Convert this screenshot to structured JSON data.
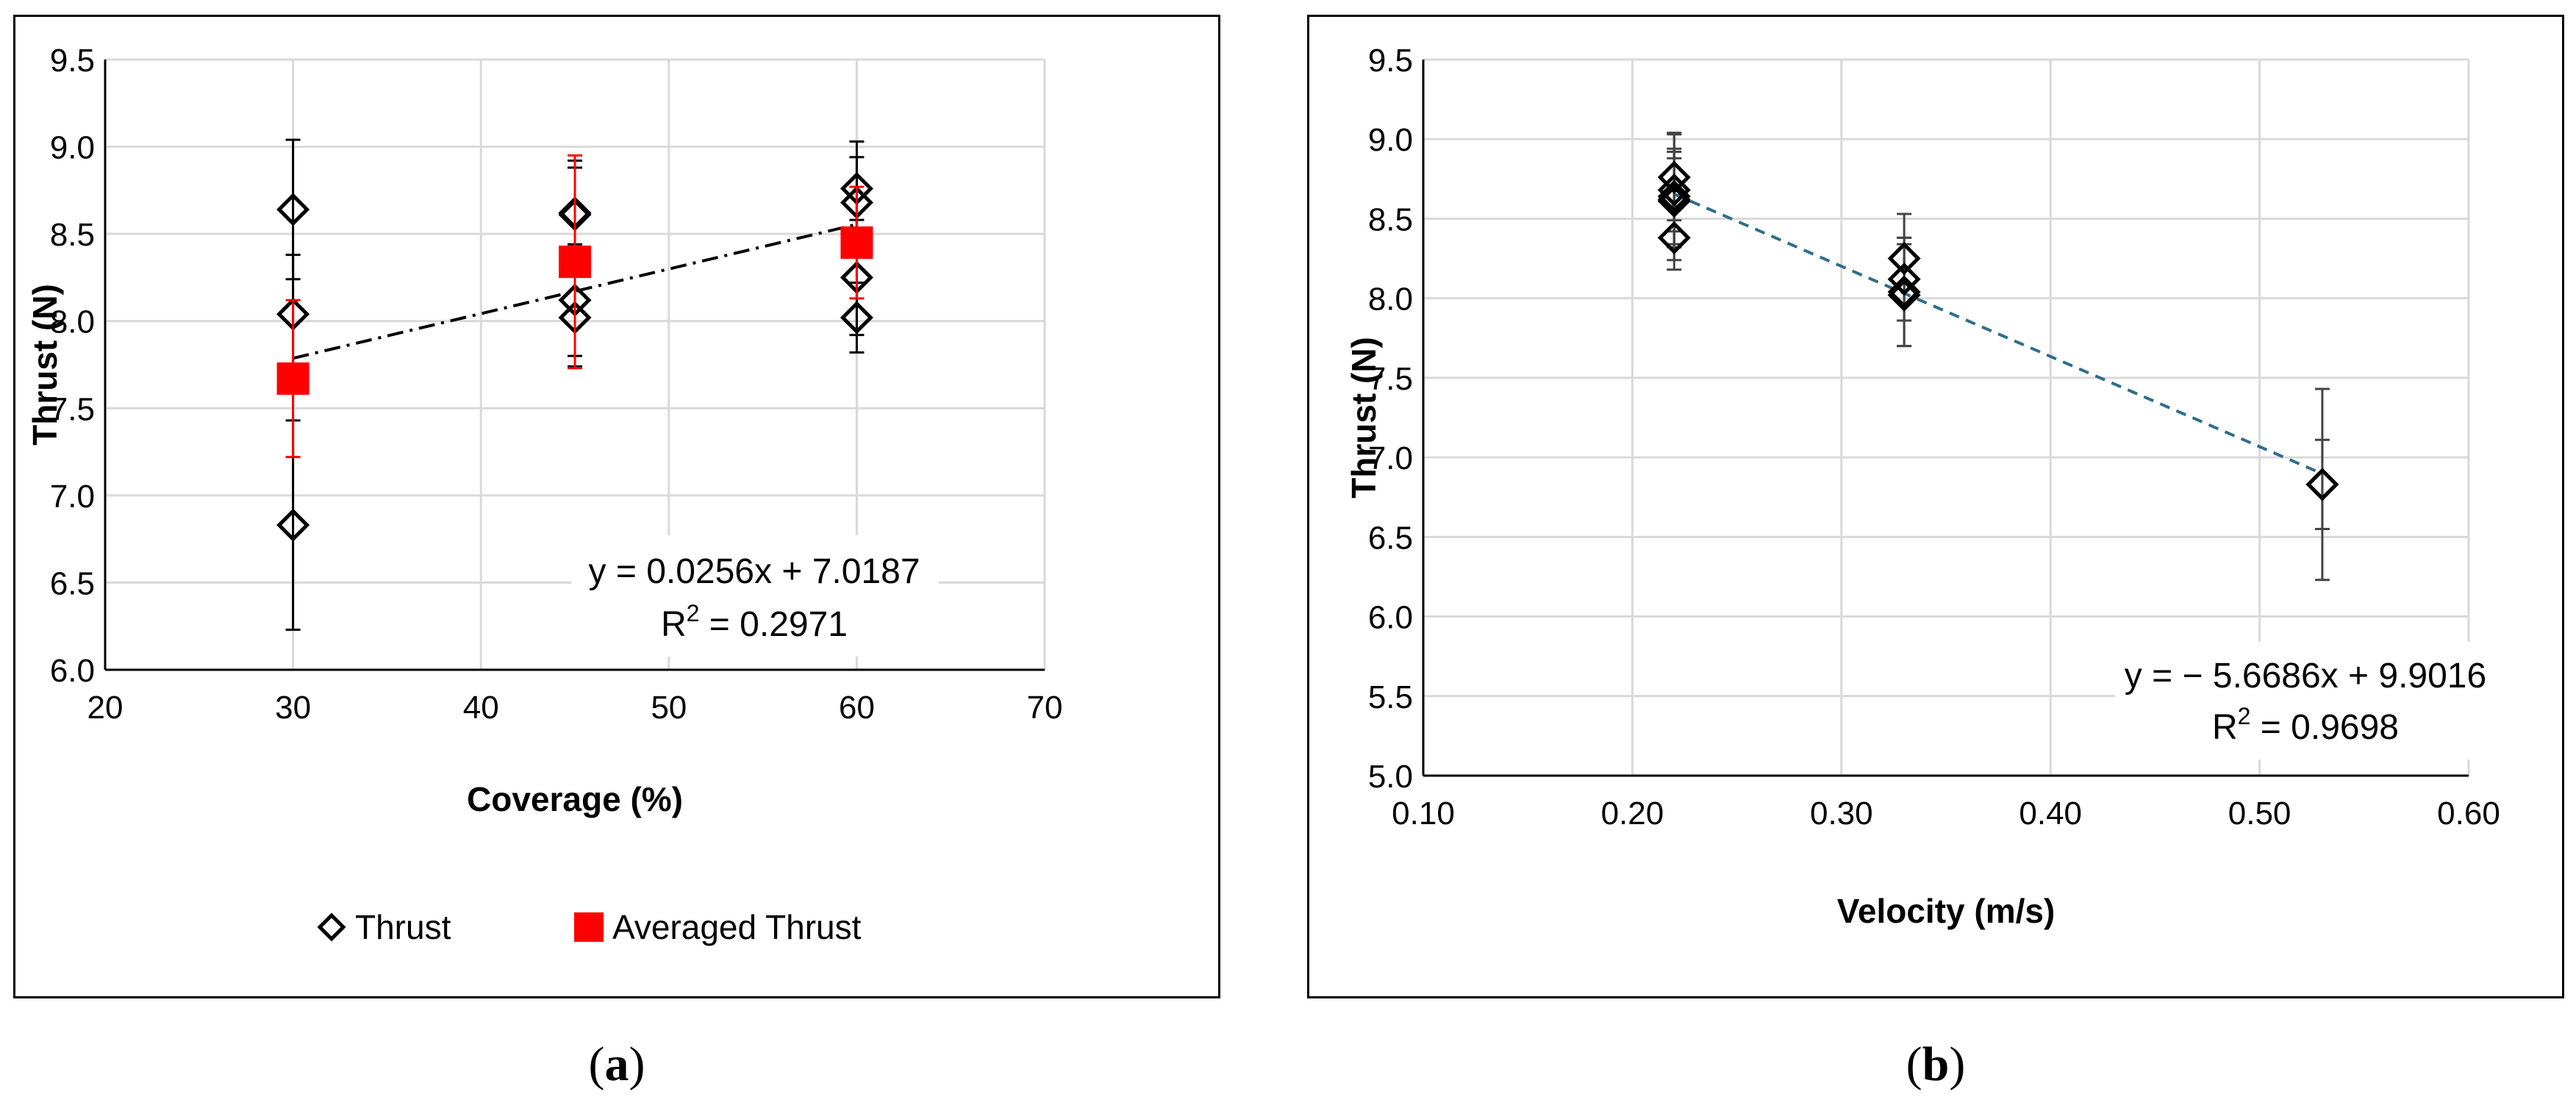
{
  "chart_data": [
    {
      "type": "scatter",
      "panel": "a",
      "xlabel": "Coverage (%)",
      "ylabel": "Thrust (N)",
      "xlim": [
        20,
        70
      ],
      "ylim": [
        6.0,
        9.5
      ],
      "xticks": [
        20,
        30,
        40,
        50,
        60,
        70
      ],
      "yticks": [
        6.0,
        6.5,
        7.0,
        7.5,
        8.0,
        8.5,
        9.0,
        9.5
      ],
      "ytick_decimals": 1,
      "xtick_decimals": 0,
      "grid": true,
      "legend_position": "bottom",
      "series": [
        {
          "name": "Thrust",
          "marker": "diamond-open",
          "color": "#000000",
          "points": [
            {
              "x": 30,
              "y": 8.64,
              "err": 0.4
            },
            {
              "x": 30,
              "y": 8.04,
              "err": 0.34
            },
            {
              "x": 30,
              "y": 6.83,
              "err": 0.6
            },
            {
              "x": 45,
              "y": 8.62,
              "err": 0.3
            },
            {
              "x": 45,
              "y": 8.61,
              "err": 0.27
            },
            {
              "x": 45,
              "y": 8.12,
              "err": 0.32
            },
            {
              "x": 45,
              "y": 8.02,
              "err": 0.28
            },
            {
              "x": 60,
              "y": 8.76,
              "err": 0.27
            },
            {
              "x": 60,
              "y": 8.68,
              "err": 0.26
            },
            {
              "x": 60,
              "y": 8.25,
              "err": 0.33
            },
            {
              "x": 60,
              "y": 8.02,
              "err": 0.2
            }
          ]
        },
        {
          "name": "Averaged Thrust",
          "marker": "square-filled",
          "color": "#ff0000",
          "points": [
            {
              "x": 30,
              "y": 7.67,
              "err": 0.45
            },
            {
              "x": 45,
              "y": 8.34,
              "err": 0.61
            },
            {
              "x": 60,
              "y": 8.45,
              "err": 0.32
            }
          ]
        }
      ],
      "trendline": {
        "slope": 0.0256,
        "intercept": 7.0187,
        "x_range": [
          30,
          60
        ],
        "style": "dash-dot",
        "color": "#000000"
      },
      "annotation": {
        "equation": "y = 0.0256x + 7.0187",
        "r2_prefix": "R",
        "r2_sup": "2",
        "r2_value": " = 0.2971"
      }
    },
    {
      "type": "scatter",
      "panel": "b",
      "xlabel": "Velocity (m/s)",
      "ylabel": "Thrust (N)",
      "xlim": [
        0.1,
        0.6
      ],
      "ylim": [
        5.0,
        9.5
      ],
      "xticks": [
        0.1,
        0.2,
        0.3,
        0.4,
        0.5,
        0.6
      ],
      "yticks": [
        5.0,
        5.5,
        6.0,
        6.5,
        7.0,
        7.5,
        8.0,
        8.5,
        9.0,
        9.5
      ],
      "ytick_decimals": 1,
      "xtick_decimals": 2,
      "grid": true,
      "series": [
        {
          "name": "Thrust",
          "marker": "diamond-open",
          "color": "#000000",
          "points": [
            {
              "x": 0.22,
              "y": 8.76,
              "err": 0.27
            },
            {
              "x": 0.22,
              "y": 8.68,
              "err": 0.26
            },
            {
              "x": 0.22,
              "y": 8.64,
              "err": 0.4
            },
            {
              "x": 0.22,
              "y": 8.62,
              "err": 0.3
            },
            {
              "x": 0.22,
              "y": 8.61,
              "err": 0.27
            },
            {
              "x": 0.22,
              "y": 8.38,
              "err": 0.2
            },
            {
              "x": 0.33,
              "y": 8.25,
              "err": 0.28
            },
            {
              "x": 0.33,
              "y": 8.12,
              "err": 0.26
            },
            {
              "x": 0.33,
              "y": 8.04,
              "err": 0.34
            },
            {
              "x": 0.33,
              "y": 8.02,
              "err": 0.32
            },
            {
              "x": 0.53,
              "y": 6.83,
              "err": 0.6
            },
            {
              "x": 0.53,
              "y": 6.83,
              "err": 0.28
            }
          ]
        }
      ],
      "trendline": {
        "slope": -5.6686,
        "intercept": 9.9016,
        "x_range": [
          0.22,
          0.53
        ],
        "style": "dashed",
        "color": "#2e6e8a"
      },
      "annotation": {
        "equation": "y = − 5.6686x + 9.9016",
        "r2_prefix": "R",
        "r2_sup": "2",
        "r2_value": " = 0.9698"
      }
    }
  ],
  "captions": {
    "a": {
      "open": "(",
      "letter": "a",
      "close": ")"
    },
    "b": {
      "open": "(",
      "letter": "b",
      "close": ")"
    }
  },
  "colors": {
    "grid": "#d9d9d9",
    "axis": "#000000",
    "error_bar_dark": "#444444"
  }
}
